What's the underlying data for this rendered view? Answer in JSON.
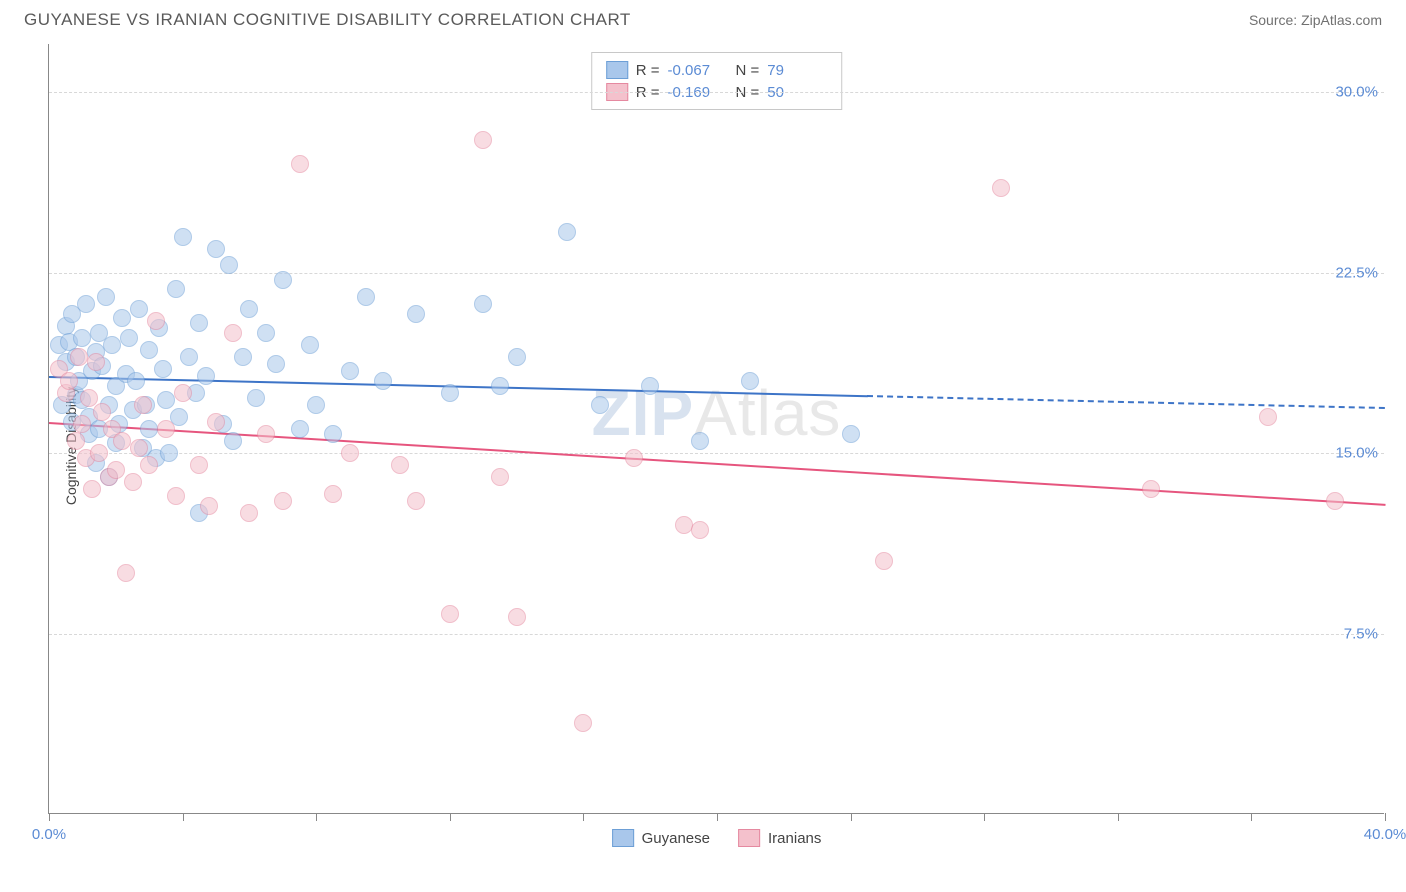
{
  "header": {
    "title": "GUYANESE VS IRANIAN COGNITIVE DISABILITY CORRELATION CHART",
    "source": "Source: ZipAtlas.com"
  },
  "chart": {
    "type": "scatter",
    "ylabel": "Cognitive Disability",
    "background_color": "#ffffff",
    "grid_color": "#d8d8d8",
    "axis_color": "#888888",
    "tick_label_color": "#5b8bd4",
    "xlim": [
      0,
      40
    ],
    "ylim": [
      0,
      32
    ],
    "xticks": [
      0,
      4,
      8,
      12,
      16,
      20,
      24,
      28,
      32,
      36,
      40
    ],
    "xtick_labels": {
      "0": "0.0%",
      "40": "40.0%"
    },
    "yticks": [
      7.5,
      15.0,
      22.5,
      30.0
    ],
    "ytick_labels": [
      "7.5%",
      "15.0%",
      "22.5%",
      "30.0%"
    ],
    "point_radius": 9,
    "point_opacity": 0.55,
    "series": [
      {
        "name": "Guyanese",
        "color_fill": "#a9c7eb",
        "color_stroke": "#6d9fd6",
        "r": -0.067,
        "n": 79,
        "trend": {
          "x0": 0,
          "y0": 18.2,
          "x_solid_end": 24.5,
          "y_solid_end": 17.4,
          "x1": 40,
          "y1": 16.9,
          "stroke": "#3d74c7",
          "width": 2
        },
        "points": [
          [
            0.3,
            19.5
          ],
          [
            0.4,
            17.0
          ],
          [
            0.5,
            20.3
          ],
          [
            0.5,
            18.8
          ],
          [
            0.6,
            19.6
          ],
          [
            0.7,
            16.3
          ],
          [
            0.7,
            20.8
          ],
          [
            0.8,
            19.0
          ],
          [
            0.8,
            17.4
          ],
          [
            0.9,
            18.0
          ],
          [
            1.0,
            19.8
          ],
          [
            1.0,
            17.2
          ],
          [
            1.1,
            21.2
          ],
          [
            1.2,
            15.8
          ],
          [
            1.2,
            16.5
          ],
          [
            1.3,
            18.4
          ],
          [
            1.4,
            19.2
          ],
          [
            1.4,
            14.6
          ],
          [
            1.5,
            16.0
          ],
          [
            1.5,
            20.0
          ],
          [
            1.6,
            18.6
          ],
          [
            1.7,
            21.5
          ],
          [
            1.8,
            17.0
          ],
          [
            1.8,
            14.0
          ],
          [
            1.9,
            19.5
          ],
          [
            2.0,
            17.8
          ],
          [
            2.0,
            15.4
          ],
          [
            2.1,
            16.2
          ],
          [
            2.2,
            20.6
          ],
          [
            2.3,
            18.3
          ],
          [
            2.4,
            19.8
          ],
          [
            2.5,
            16.8
          ],
          [
            2.6,
            18.0
          ],
          [
            2.7,
            21.0
          ],
          [
            2.8,
            15.2
          ],
          [
            2.9,
            17.0
          ],
          [
            3.0,
            19.3
          ],
          [
            3.0,
            16.0
          ],
          [
            3.2,
            14.8
          ],
          [
            3.3,
            20.2
          ],
          [
            3.4,
            18.5
          ],
          [
            3.5,
            17.2
          ],
          [
            3.6,
            15.0
          ],
          [
            3.8,
            21.8
          ],
          [
            3.9,
            16.5
          ],
          [
            4.0,
            24.0
          ],
          [
            4.2,
            19.0
          ],
          [
            4.4,
            17.5
          ],
          [
            4.5,
            20.4
          ],
          [
            4.5,
            12.5
          ],
          [
            4.7,
            18.2
          ],
          [
            5.0,
            23.5
          ],
          [
            5.2,
            16.2
          ],
          [
            5.4,
            22.8
          ],
          [
            5.5,
            15.5
          ],
          [
            5.8,
            19.0
          ],
          [
            6.0,
            21.0
          ],
          [
            6.2,
            17.3
          ],
          [
            6.5,
            20.0
          ],
          [
            6.8,
            18.7
          ],
          [
            7.0,
            22.2
          ],
          [
            7.5,
            16.0
          ],
          [
            7.8,
            19.5
          ],
          [
            8.0,
            17.0
          ],
          [
            8.5,
            15.8
          ],
          [
            9.0,
            18.4
          ],
          [
            9.5,
            21.5
          ],
          [
            10.0,
            18.0
          ],
          [
            11.0,
            20.8
          ],
          [
            12.0,
            17.5
          ],
          [
            13.0,
            21.2
          ],
          [
            13.5,
            17.8
          ],
          [
            14.0,
            19.0
          ],
          [
            15.5,
            24.2
          ],
          [
            16.5,
            17.0
          ],
          [
            18.0,
            17.8
          ],
          [
            19.5,
            15.5
          ],
          [
            21.0,
            18.0
          ],
          [
            24.0,
            15.8
          ]
        ]
      },
      {
        "name": "Iranians",
        "color_fill": "#f4c1cc",
        "color_stroke": "#e589a0",
        "r": -0.169,
        "n": 50,
        "trend": {
          "x0": 0,
          "y0": 16.3,
          "x_solid_end": 40,
          "y_solid_end": 12.9,
          "x1": 40,
          "y1": 12.9,
          "stroke": "#e6557e",
          "width": 2
        },
        "points": [
          [
            0.3,
            18.5
          ],
          [
            0.5,
            17.5
          ],
          [
            0.6,
            18.0
          ],
          [
            0.8,
            15.5
          ],
          [
            0.9,
            19.0
          ],
          [
            1.0,
            16.2
          ],
          [
            1.1,
            14.8
          ],
          [
            1.2,
            17.3
          ],
          [
            1.3,
            13.5
          ],
          [
            1.4,
            18.8
          ],
          [
            1.5,
            15.0
          ],
          [
            1.6,
            16.7
          ],
          [
            1.8,
            14.0
          ],
          [
            1.9,
            16.0
          ],
          [
            2.0,
            14.3
          ],
          [
            2.2,
            15.5
          ],
          [
            2.3,
            10.0
          ],
          [
            2.5,
            13.8
          ],
          [
            2.7,
            15.2
          ],
          [
            2.8,
            17.0
          ],
          [
            3.0,
            14.5
          ],
          [
            3.2,
            20.5
          ],
          [
            3.5,
            16.0
          ],
          [
            3.8,
            13.2
          ],
          [
            4.0,
            17.5
          ],
          [
            4.5,
            14.5
          ],
          [
            4.8,
            12.8
          ],
          [
            5.0,
            16.3
          ],
          [
            5.5,
            20.0
          ],
          [
            6.0,
            12.5
          ],
          [
            6.5,
            15.8
          ],
          [
            7.0,
            13.0
          ],
          [
            7.5,
            27.0
          ],
          [
            8.5,
            13.3
          ],
          [
            9.0,
            15.0
          ],
          [
            10.5,
            14.5
          ],
          [
            11.0,
            13.0
          ],
          [
            12.0,
            8.3
          ],
          [
            13.0,
            28.0
          ],
          [
            13.5,
            14.0
          ],
          [
            14.0,
            8.2
          ],
          [
            16.0,
            3.8
          ],
          [
            17.5,
            14.8
          ],
          [
            19.0,
            12.0
          ],
          [
            19.5,
            11.8
          ],
          [
            25.0,
            10.5
          ],
          [
            28.5,
            26.0
          ],
          [
            33.0,
            13.5
          ],
          [
            36.5,
            16.5
          ],
          [
            38.5,
            13.0
          ]
        ]
      }
    ],
    "legend_top": {
      "border_color": "#c8c8c8",
      "r_label": "R =",
      "n_label": "N ="
    },
    "legend_bottom": [
      {
        "label": "Guyanese",
        "fill": "#a9c7eb",
        "stroke": "#6d9fd6"
      },
      {
        "label": "Iranians",
        "fill": "#f4c1cc",
        "stroke": "#e589a0"
      }
    ],
    "watermark": {
      "part1": "ZIP",
      "part2": "Atlas"
    }
  }
}
